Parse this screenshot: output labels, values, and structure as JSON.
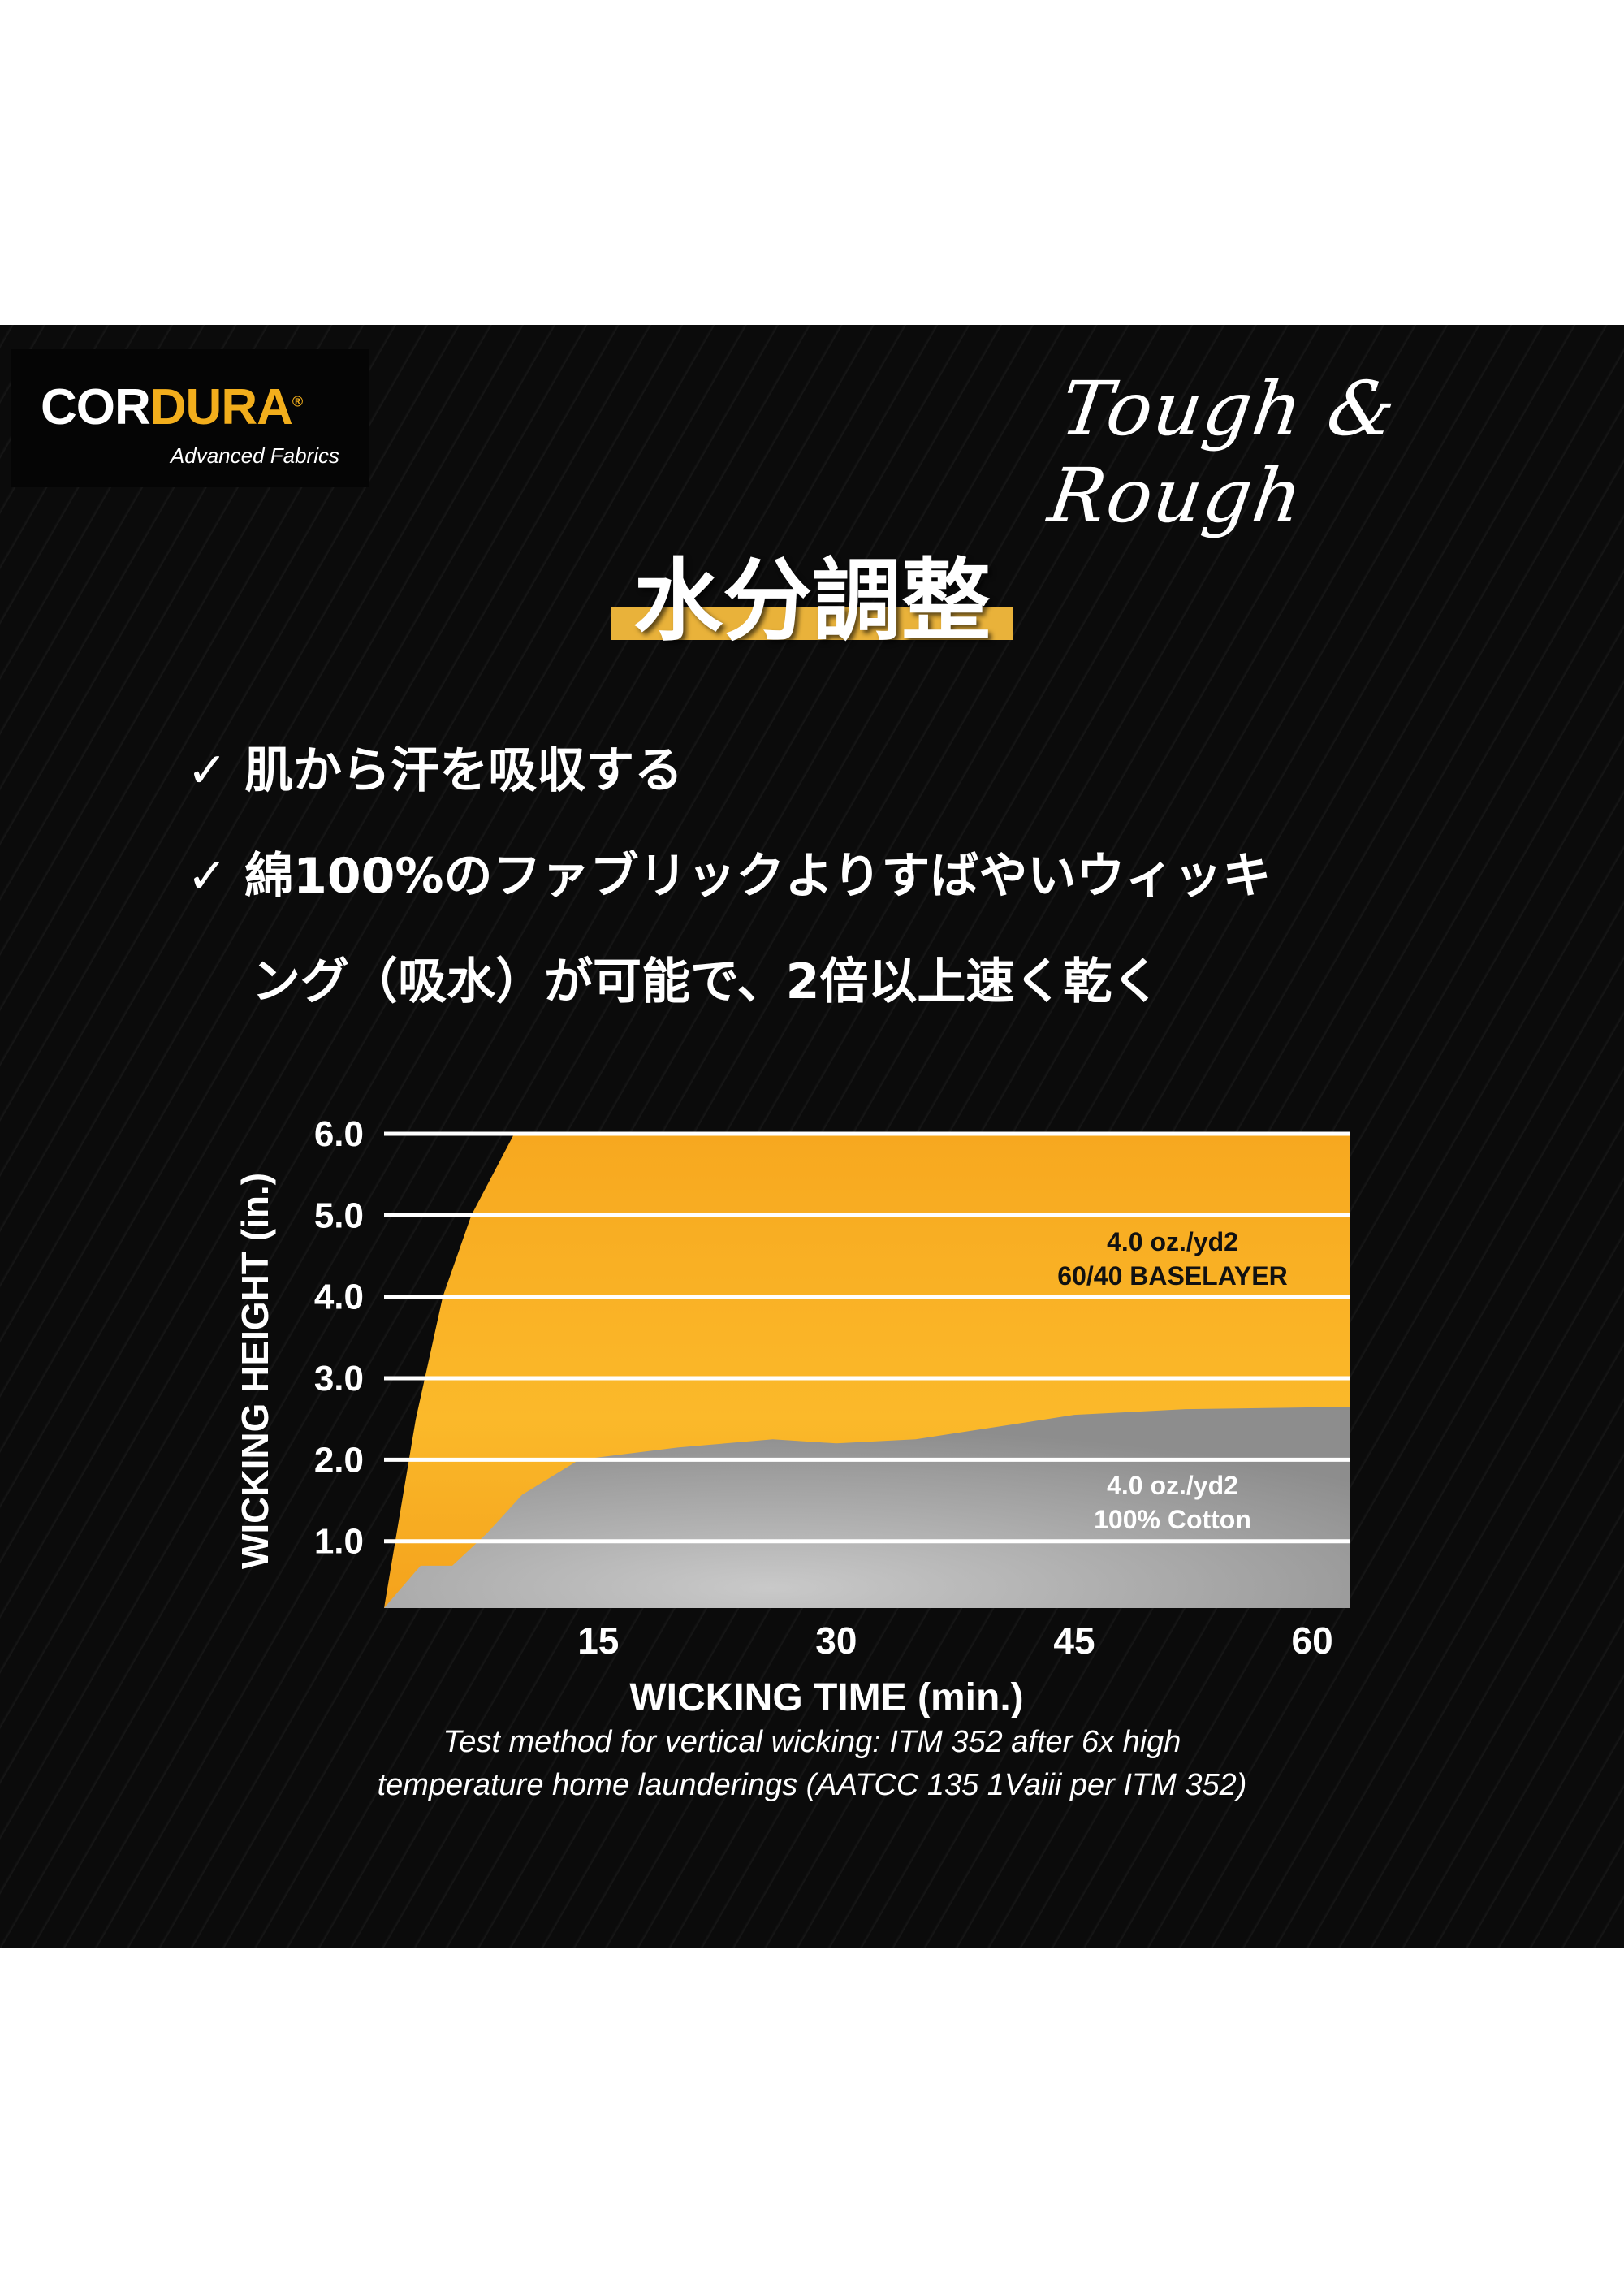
{
  "logo": {
    "brand_white": "COR",
    "brand_orange": "DURA",
    "reg": "®",
    "subtitle": "Advanced Fabrics"
  },
  "slogan": "Tough & Rough",
  "title": "水分調整",
  "points": [
    "✓ 肌から汗を吸収する",
    "✓ 綿100%のファブリックよりすばやいウィッキ",
    "ング（吸水）が可能で、2倍以上速く乾く"
  ],
  "colors": {
    "accent": "#f2ae1c",
    "baselayer": "#fbb325",
    "cotton": "#a9a9a9",
    "background": "#0b0b0b"
  },
  "chart_data": {
    "type": "area",
    "xlabel": "WICKING TIME (min.)",
    "ylabel": "WICKING HEIGHT (in.)",
    "xlim": [
      1.5,
      62.4
    ],
    "ylim": [
      0.18,
      6.0
    ],
    "xticks": [
      15,
      30,
      45,
      60
    ],
    "xtick_labels": [
      "15",
      "30",
      "45",
      "60"
    ],
    "yticks": [
      1,
      2,
      3,
      4,
      5,
      6
    ],
    "ytick_labels": [
      "1.0",
      "2.0",
      "3.0",
      "4.0",
      "5.0",
      "6.0"
    ],
    "grid": true,
    "series": [
      {
        "name": "4.0 oz./yd2 60/40 BASELAYER",
        "label_lines": [
          "4.0 oz./yd2",
          "60/40 BASELAYER"
        ],
        "x": [
          1.5,
          3.5,
          5.2,
          7.0,
          9.7,
          62.4
        ],
        "y": [
          0.18,
          2.5,
          4.0,
          5.0,
          6.0,
          6.0
        ]
      },
      {
        "name": "4.0 oz./yd2 100% Cotton",
        "label_lines": [
          "4.0 oz./yd2",
          "100% Cotton"
        ],
        "x": [
          1.5,
          3.8,
          5.8,
          8.0,
          10.2,
          13.8,
          20,
          26,
          30,
          35,
          40,
          45,
          52,
          62.4
        ],
        "y": [
          0.18,
          0.7,
          0.7,
          1.1,
          1.57,
          2.0,
          2.15,
          2.25,
          2.2,
          2.25,
          2.4,
          2.55,
          2.62,
          2.65
        ]
      }
    ],
    "footnote": [
      "Test method for vertical wicking: ITM 352 after 6x high",
      "temperature home launderings (AATCC 135 1Vaiii per ITM 352)"
    ]
  }
}
